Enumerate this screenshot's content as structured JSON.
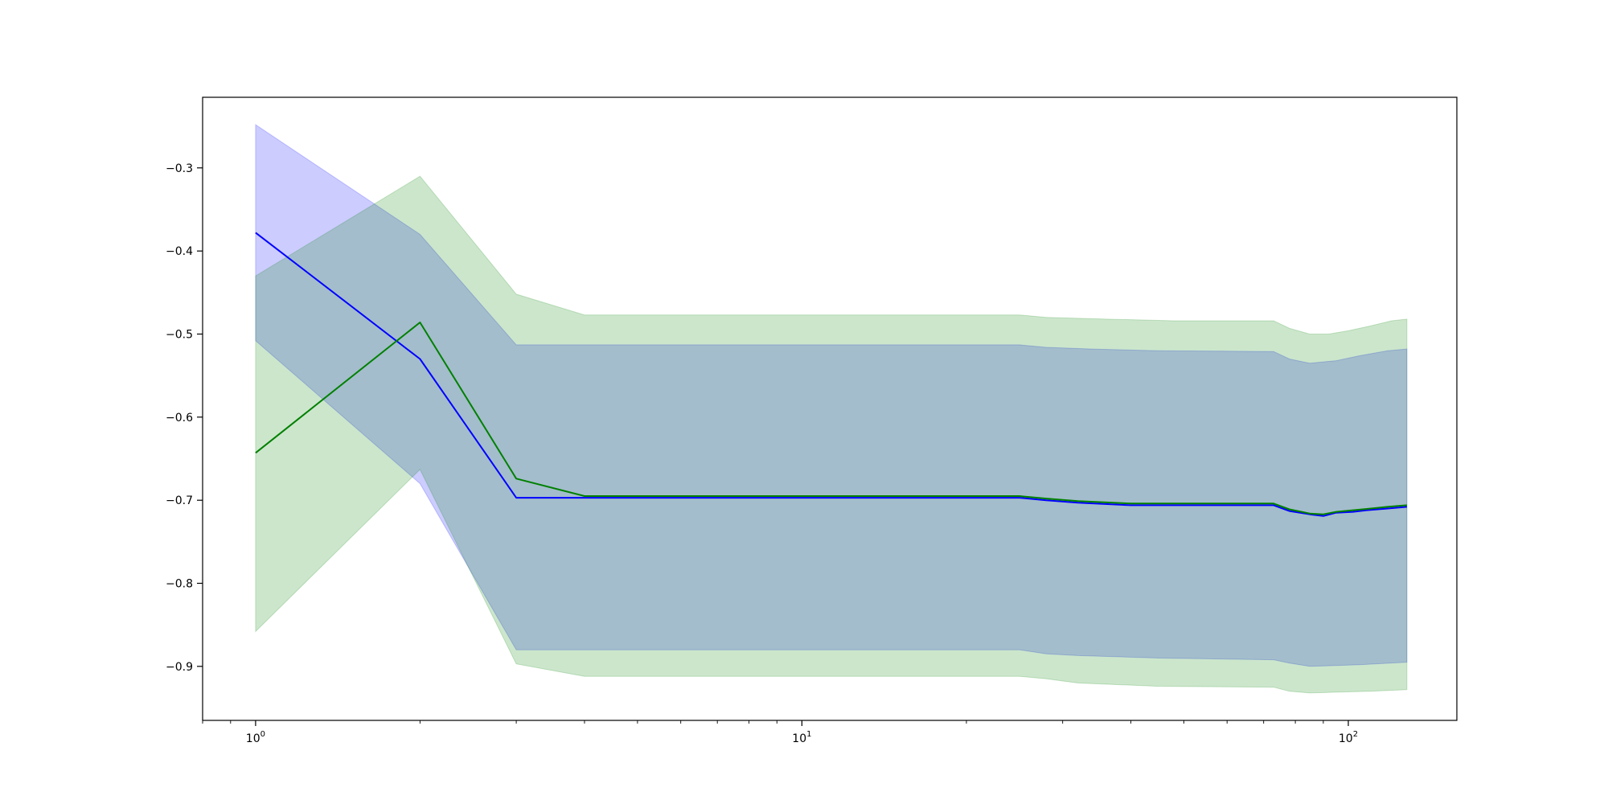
{
  "chart_data": {
    "type": "line",
    "xscale": "log",
    "xlim": [
      0.8,
      158
    ],
    "ylim": [
      -0.965,
      -0.215
    ],
    "grid": false,
    "legend": "none",
    "x_ticks": [
      {
        "value": 1,
        "base": "10",
        "exp": "0"
      },
      {
        "value": 10,
        "base": "10",
        "exp": "1"
      },
      {
        "value": 100,
        "base": "10",
        "exp": "2"
      }
    ],
    "y_ticks": [
      {
        "value": -0.3,
        "label": "−0.3"
      },
      {
        "value": -0.4,
        "label": "−0.4"
      },
      {
        "value": -0.5,
        "label": "−0.5"
      },
      {
        "value": -0.6,
        "label": "−0.6"
      },
      {
        "value": -0.7,
        "label": "−0.7"
      },
      {
        "value": -0.8,
        "label": "−0.8"
      },
      {
        "value": -0.9,
        "label": "−0.9"
      }
    ],
    "series": [
      {
        "color": "#0000ff",
        "band_color": "#0000ff",
        "band_opacity": 0.2,
        "mean": [
          [
            1,
            -0.378
          ],
          [
            2,
            -0.53
          ],
          [
            3,
            -0.697
          ],
          [
            25,
            -0.697
          ],
          [
            28,
            -0.7
          ],
          [
            32,
            -0.703
          ],
          [
            40,
            -0.706
          ],
          [
            73,
            -0.706
          ],
          [
            78,
            -0.713
          ],
          [
            85,
            -0.717
          ],
          [
            90,
            -0.719
          ],
          [
            95,
            -0.715
          ],
          [
            102,
            -0.714
          ],
          [
            108,
            -0.712
          ],
          [
            118,
            -0.71
          ],
          [
            128,
            -0.708
          ]
        ],
        "upper": [
          [
            1,
            -0.248
          ],
          [
            2,
            -0.38
          ],
          [
            3,
            -0.513
          ],
          [
            25,
            -0.513
          ],
          [
            28,
            -0.516
          ],
          [
            34,
            -0.518
          ],
          [
            45,
            -0.52
          ],
          [
            73,
            -0.521
          ],
          [
            78,
            -0.53
          ],
          [
            85,
            -0.535
          ],
          [
            95,
            -0.532
          ],
          [
            105,
            -0.526
          ],
          [
            118,
            -0.52
          ],
          [
            128,
            -0.518
          ]
        ],
        "lower": [
          [
            1,
            -0.508
          ],
          [
            2,
            -0.68
          ],
          [
            3,
            -0.88
          ],
          [
            25,
            -0.88
          ],
          [
            28,
            -0.885
          ],
          [
            32,
            -0.887
          ],
          [
            45,
            -0.89
          ],
          [
            73,
            -0.892
          ],
          [
            78,
            -0.896
          ],
          [
            85,
            -0.9
          ],
          [
            95,
            -0.899
          ],
          [
            105,
            -0.898
          ],
          [
            128,
            -0.895
          ]
        ]
      },
      {
        "color": "#008000",
        "band_color": "#008000",
        "band_opacity": 0.2,
        "mean": [
          [
            1,
            -0.643
          ],
          [
            2,
            -0.486
          ],
          [
            3,
            -0.674
          ],
          [
            4,
            -0.695
          ],
          [
            25,
            -0.695
          ],
          [
            28,
            -0.698
          ],
          [
            32,
            -0.701
          ],
          [
            40,
            -0.704
          ],
          [
            73,
            -0.704
          ],
          [
            78,
            -0.711
          ],
          [
            85,
            -0.716
          ],
          [
            90,
            -0.717
          ],
          [
            95,
            -0.714
          ],
          [
            102,
            -0.712
          ],
          [
            110,
            -0.71
          ],
          [
            118,
            -0.708
          ],
          [
            128,
            -0.706
          ]
        ],
        "upper": [
          [
            1,
            -0.43
          ],
          [
            2,
            -0.31
          ],
          [
            3,
            -0.452
          ],
          [
            4,
            -0.477
          ],
          [
            25,
            -0.477
          ],
          [
            28,
            -0.48
          ],
          [
            36,
            -0.482
          ],
          [
            48,
            -0.484
          ],
          [
            73,
            -0.484
          ],
          [
            78,
            -0.493
          ],
          [
            85,
            -0.5
          ],
          [
            92,
            -0.5
          ],
          [
            100,
            -0.496
          ],
          [
            110,
            -0.49
          ],
          [
            120,
            -0.484
          ],
          [
            128,
            -0.482
          ]
        ],
        "lower": [
          [
            1,
            -0.858
          ],
          [
            2,
            -0.663
          ],
          [
            3,
            -0.897
          ],
          [
            4,
            -0.912
          ],
          [
            25,
            -0.912
          ],
          [
            28,
            -0.915
          ],
          [
            32,
            -0.92
          ],
          [
            45,
            -0.924
          ],
          [
            73,
            -0.925
          ],
          [
            78,
            -0.93
          ],
          [
            85,
            -0.932
          ],
          [
            95,
            -0.931
          ],
          [
            110,
            -0.93
          ],
          [
            128,
            -0.928
          ]
        ]
      }
    ]
  }
}
